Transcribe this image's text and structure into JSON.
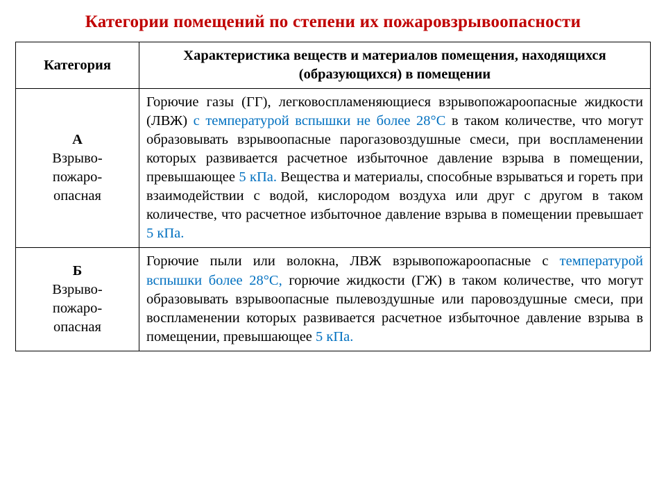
{
  "title": "Категории помещений по степени их пожаровзрывоопасности",
  "colors": {
    "title": "#c00000",
    "highlight": "#0070c0",
    "text": "#000000",
    "border": "#000000",
    "background": "#ffffff"
  },
  "typography": {
    "base_family": "Times New Roman",
    "title_fontsize": 25,
    "body_fontsize": 20.5
  },
  "headers": {
    "col1": "Категория",
    "col2": "Характеристика веществ и материалов помещения, находящихся (образующихся) в помещении"
  },
  "rows": [
    {
      "letter": "А",
      "subtitle": "Взрыво-пожаро-опасная",
      "segments": [
        {
          "t": "Горючие газы (ГГ), легковоспламеняющиеся взрывопожароопасные жидкости (ЛВЖ) ",
          "hl": false
        },
        {
          "t": "с температурой вспышки не более 28°С",
          "hl": true
        },
        {
          "t": " в таком количестве, что могут образовывать взрывоопасные парогазовоздушные смеси, при воспламенении которых развивается расчетное избыточное давление взрыва в помещении, превышающее ",
          "hl": false
        },
        {
          "t": "5 кПа.",
          "hl": true
        },
        {
          "t": " Вещества и материалы, способные взрываться и гореть при взаимодействии с водой, кислородом воздуха или друг с другом в таком количестве, что расчетное избыточное давление взрыва в помещении превышает ",
          "hl": false
        },
        {
          "t": "5 кПа.",
          "hl": true
        }
      ]
    },
    {
      "letter": "Б",
      "subtitle": "Взрыво-пожаро-опасная",
      "segments": [
        {
          "t": "Горючие пыли или волокна, ЛВЖ взрывопожароопасные с ",
          "hl": false
        },
        {
          "t": "температурой вспышки более 28°С,",
          "hl": true
        },
        {
          "t": " горючие жидкости (ГЖ) в таком количестве, что могут образовывать взрывоопасные пылевоздушные или паровоздушные смеси, при воспламенении которых развивается расчетное избыточное давление взрыва в помещении, превышающее ",
          "hl": false
        },
        {
          "t": "5 кПа.",
          "hl": true
        }
      ]
    }
  ]
}
